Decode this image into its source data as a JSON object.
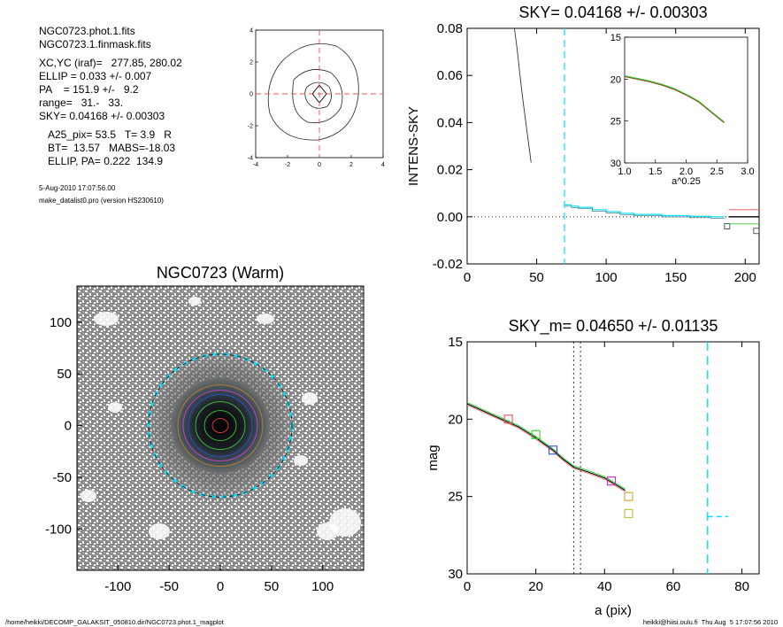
{
  "info": {
    "files": [
      "NGC0723.phot.1.fits",
      "NGC0723.1.finmask.fits"
    ],
    "params": [
      "XC,YC (iraf)=   277.85, 280.02",
      "ELLIP = 0.033 +/- 0.007",
      "PA    = 151.9 +/-   9.2",
      "range=   31.-   33.",
      "SKY= 0.04168 +/- 0.00303"
    ],
    "results": [
      "A25_pix= 53.5   T= 3.9   R",
      "BT=  13.57   MABS=-18.03",
      "ELLIP, PA= 0.222  134.9"
    ],
    "date": "5-Aug-2010 17:07:56.00",
    "program": "make_datalist0.pro (version HS230610)"
  },
  "footer": {
    "left": "/home/heikki/DECOMP_GALAKSIT_050810.dir/NGC0723.phot.1_magplot",
    "right": "heikki@hiisi.oulu.fi  Thu Aug  5 17:07:56 2010"
  },
  "colors": {
    "cyan": "#00e0ff",
    "red_dash": "#e85050",
    "green": "#33cc33",
    "brown": "#8b4513"
  },
  "chart_data": [
    {
      "id": "contour",
      "type": "contour",
      "title": "",
      "xlim": [
        -4,
        4
      ],
      "ylim": [
        -4,
        4
      ],
      "xticks": [
        -4,
        -2,
        0,
        2,
        4
      ],
      "yticks": [
        -4,
        -2,
        0,
        2,
        4
      ],
      "crosshair": [
        0,
        0
      ]
    },
    {
      "id": "sky",
      "type": "line",
      "title": "SKY= 0.04168 +/- 0.00303",
      "ylabel": "INTENS-SKY",
      "xlim": [
        0,
        210
      ],
      "ylim": [
        -0.02,
        0.08
      ],
      "xticks": [
        0,
        50,
        100,
        150,
        200
      ],
      "yticks": [
        -0.02,
        0.0,
        0.02,
        0.04,
        0.06,
        0.08
      ],
      "ytick_labels": [
        "-0.02",
        "0.00",
        "0.02",
        "0.04",
        "0.06",
        "0.08"
      ],
      "vline": 70,
      "series": [
        {
          "x": [
            34,
            36,
            38,
            40,
            42,
            44,
            46
          ],
          "y": [
            0.08,
            0.071,
            0.06,
            0.05,
            0.041,
            0.032,
            0.023
          ]
        },
        {
          "x": [
            70,
            75,
            80,
            90,
            100,
            110,
            120,
            140,
            160,
            175
          ],
          "y": [
            0.005,
            0.0045,
            0.004,
            0.003,
            0.0022,
            0.0015,
            0.001,
            0.0005,
            0.0002,
            0.0
          ]
        }
      ],
      "markers": [
        {
          "x": 187,
          "y": -0.004
        },
        {
          "x": 208,
          "y": -0.006
        }
      ],
      "inset": {
        "xlabel": "a^0.25",
        "xlim": [
          1.0,
          3.0
        ],
        "ylim": [
          15,
          30
        ],
        "xticks": [
          1.0,
          1.5,
          2.0,
          2.5,
          3.0
        ],
        "xtick_labels": [
          "1.0",
          "1.5",
          "2.0",
          "2.5",
          "3.0"
        ],
        "yticks": [
          15,
          20,
          25,
          30
        ],
        "x": [
          1.0,
          1.2,
          1.4,
          1.6,
          1.8,
          2.0,
          2.2,
          2.35,
          2.5,
          2.62
        ],
        "y": [
          19.7,
          20.0,
          20.3,
          20.7,
          21.2,
          21.9,
          22.7,
          23.6,
          24.5,
          25.2
        ]
      }
    },
    {
      "id": "image",
      "type": "image",
      "title": "NGC0723 (Warm)",
      "xlim": [
        -140,
        140
      ],
      "ylim": [
        -140,
        135
      ],
      "xticks": [
        -100,
        -50,
        0,
        50,
        100
      ],
      "yticks": [
        -100,
        -50,
        0,
        50,
        100
      ],
      "ellipse_radius": 70
    },
    {
      "id": "mag",
      "type": "line",
      "title": "SKY_m=  0.04650 +/- 0.01135",
      "xlabel": "a (pix)",
      "ylabel": "mag",
      "xlim": [
        0,
        85
      ],
      "ylim": [
        30,
        15
      ],
      "xticks": [
        0,
        20,
        40,
        60,
        80
      ],
      "yticks": [
        15,
        20,
        25,
        30
      ],
      "vlines_dotted": [
        31,
        33
      ],
      "vline_dashed": 70,
      "sky_segment": {
        "x": [
          70,
          76
        ],
        "y": 26.3
      },
      "series": [
        {
          "x": [
            0,
            5,
            10,
            15,
            20,
            25,
            28,
            31,
            35,
            40,
            43,
            46
          ],
          "y": [
            19.0,
            19.5,
            20.0,
            20.5,
            21.2,
            22.0,
            22.6,
            23.1,
            23.4,
            23.8,
            24.2,
            24.6
          ]
        }
      ],
      "markers": [
        {
          "x": 12,
          "y": 20.0,
          "color": "#e05050"
        },
        {
          "x": 20,
          "y": 21.0,
          "color": "#33cc33"
        },
        {
          "x": 25,
          "y": 22.0,
          "color": "#3050d0"
        },
        {
          "x": 42,
          "y": 24.0,
          "color": "#c030c0"
        },
        {
          "x": 47,
          "y": 25.0,
          "color": "#d8a030"
        },
        {
          "x": 47,
          "y": 26.1,
          "color": "#b8c030"
        }
      ]
    }
  ]
}
